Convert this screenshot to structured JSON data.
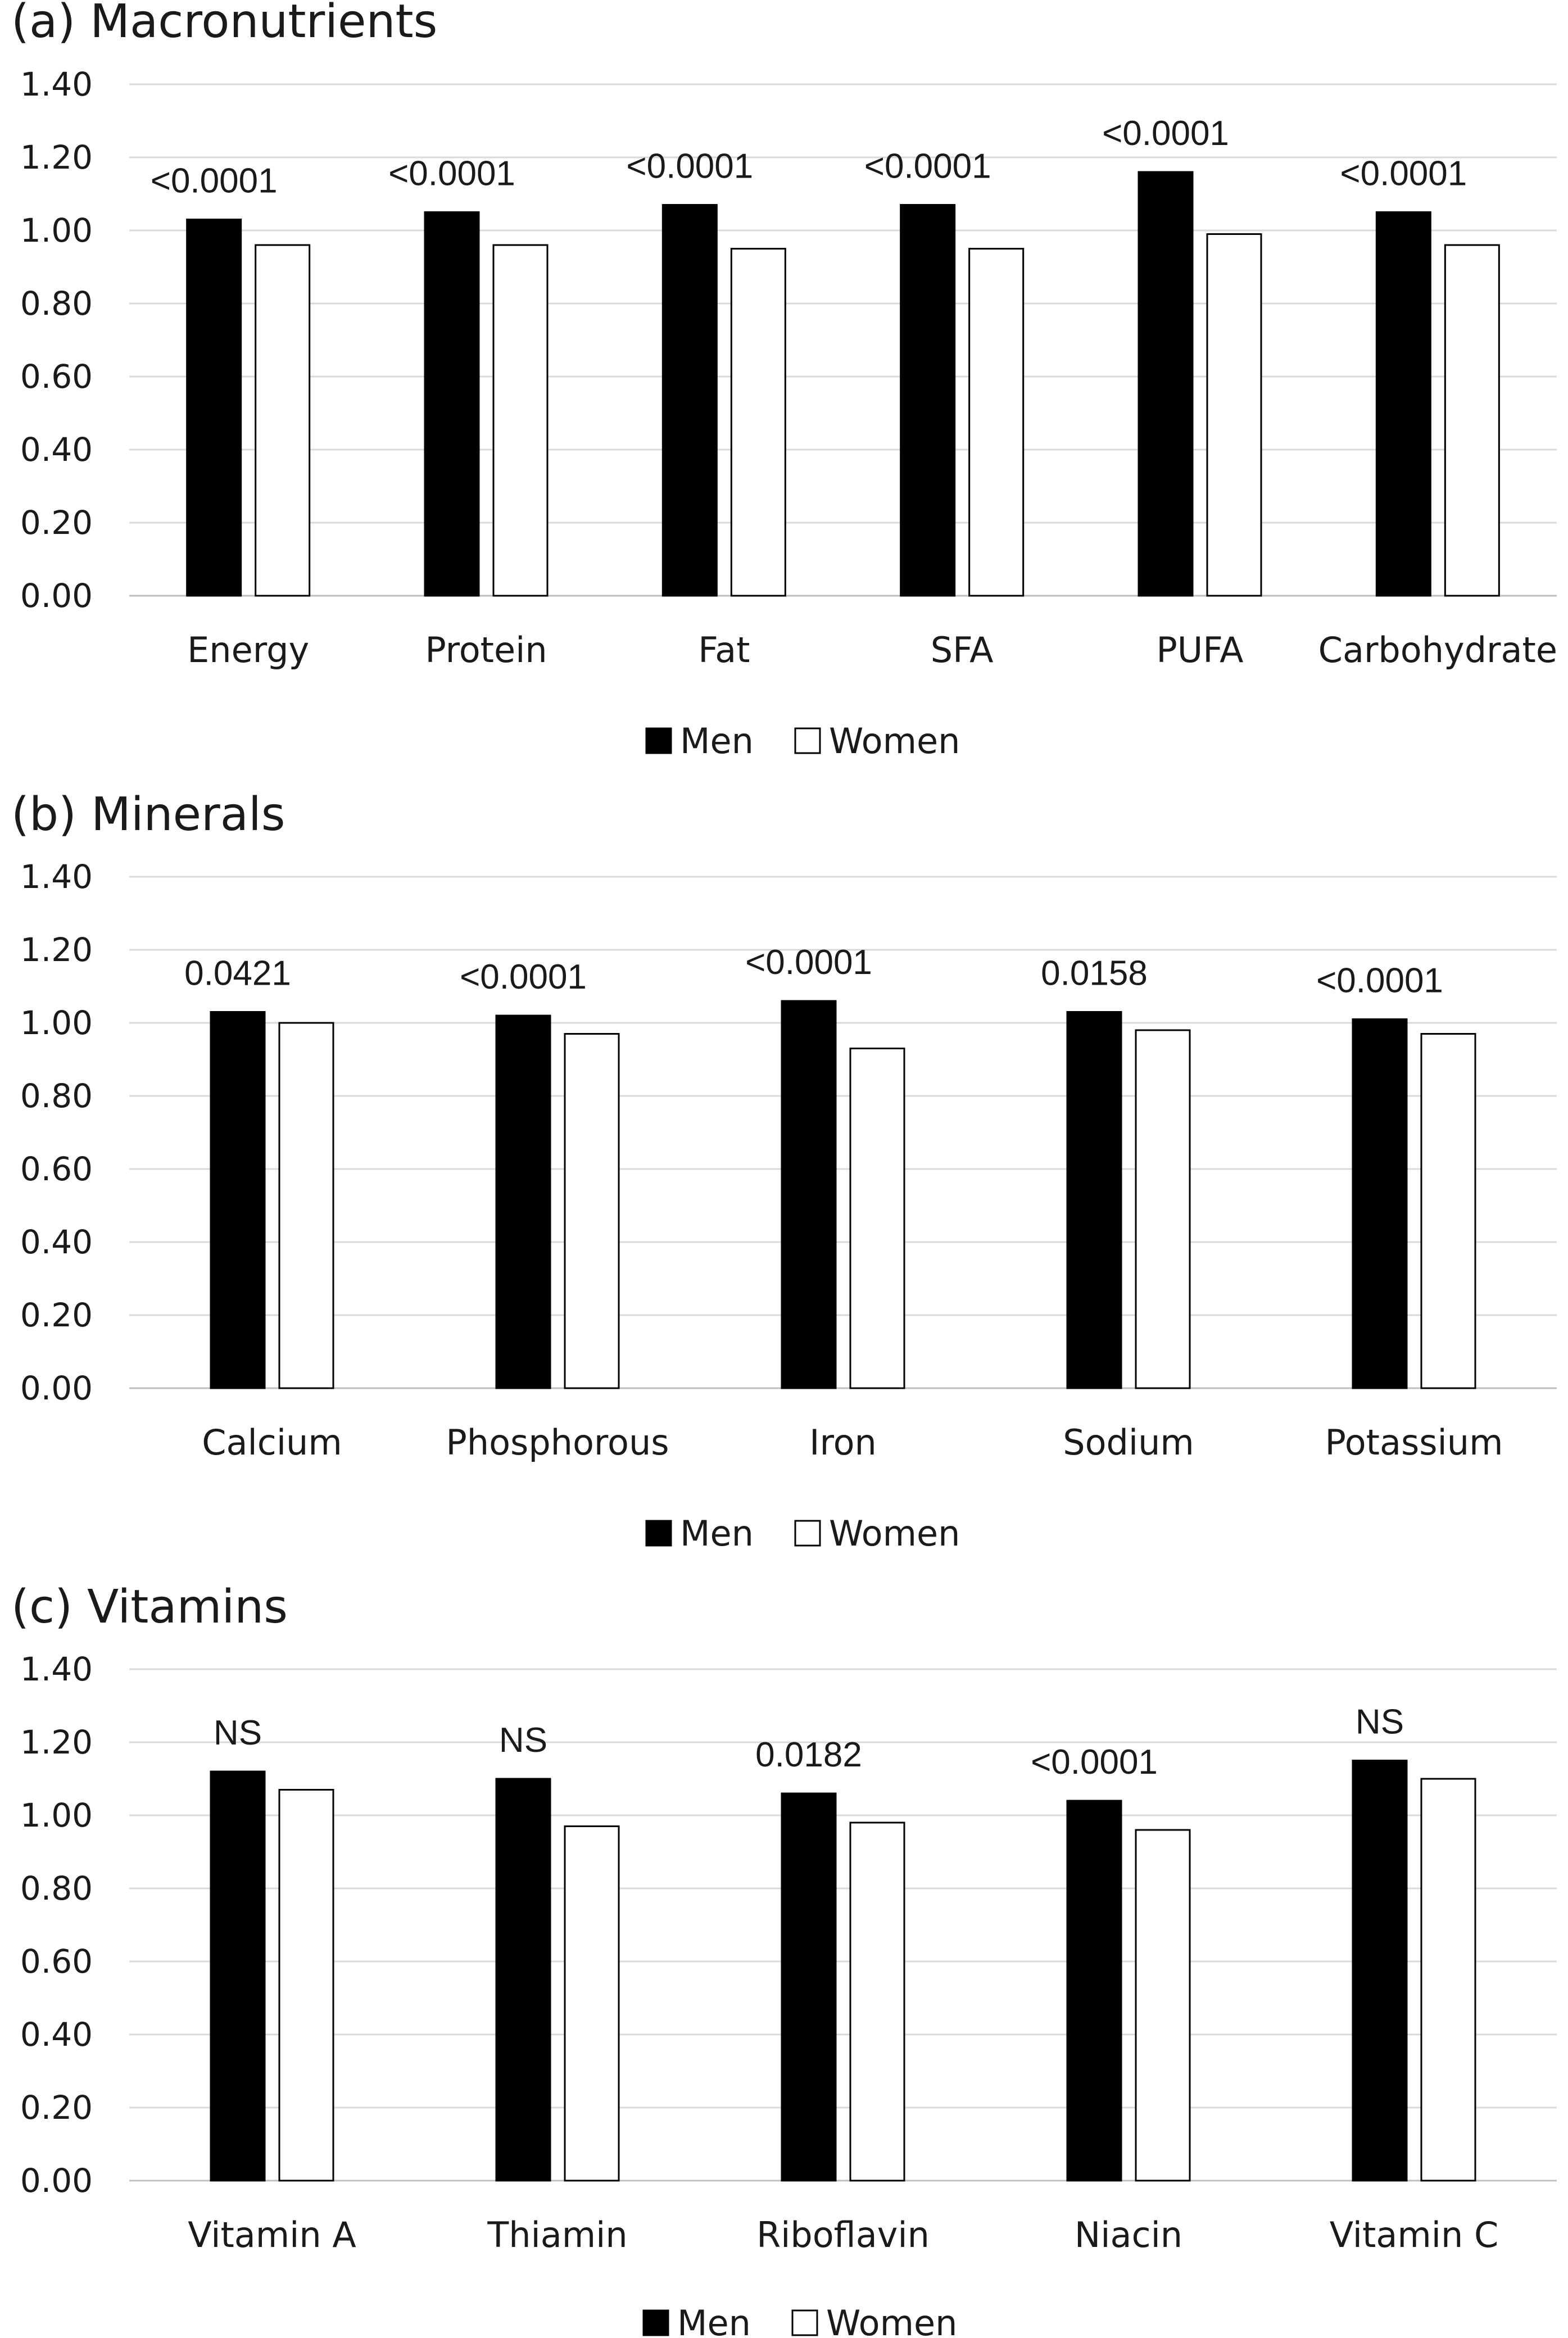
{
  "chart_data": [
    {
      "type": "bar",
      "title": "(a)  Macronutrients",
      "categories": [
        "Energy",
        "Protein",
        "Fat",
        "SFA",
        "PUFA",
        "Carbohydrate"
      ],
      "series": [
        {
          "name": "Men",
          "color": "#000000",
          "values": [
            1.03,
            1.05,
            1.07,
            1.07,
            1.16,
            1.05
          ]
        },
        {
          "name": "Women",
          "color": "#ffffff",
          "values": [
            0.96,
            0.96,
            0.95,
            0.95,
            0.99,
            0.96
          ]
        }
      ],
      "annotations": [
        "<0.0001",
        "<0.0001",
        "<0.0001",
        "<0.0001",
        "<0.0001",
        "<0.0001"
      ],
      "yticks": [
        "0.00",
        "0.20",
        "0.40",
        "0.60",
        "0.80",
        "1.00",
        "1.20",
        "1.40"
      ],
      "ylim": [
        0,
        1.4
      ],
      "grid": true,
      "legend": "bottom-center",
      "xlabel": "",
      "ylabel": ""
    },
    {
      "type": "bar",
      "title": "(b)  Minerals",
      "categories": [
        "Calcium",
        "Phosphorous",
        "Iron",
        "Sodium",
        "Potassium"
      ],
      "series": [
        {
          "name": "Men",
          "color": "#000000",
          "values": [
            1.03,
            1.02,
            1.06,
            1.03,
            1.01
          ]
        },
        {
          "name": "Women",
          "color": "#ffffff",
          "values": [
            1.0,
            0.97,
            0.93,
            0.98,
            0.97
          ]
        }
      ],
      "annotations": [
        "0.0421",
        "<0.0001",
        "<0.0001",
        "0.0158",
        "<0.0001"
      ],
      "yticks": [
        "0.00",
        "0.20",
        "0.40",
        "0.60",
        "0.80",
        "1.00",
        "1.20",
        "1.40"
      ],
      "ylim": [
        0,
        1.4
      ],
      "grid": true,
      "legend": "bottom-center",
      "xlabel": "",
      "ylabel": ""
    },
    {
      "type": "bar",
      "title": "(c)  Vitamins",
      "categories": [
        "Vitamin A",
        "Thiamin",
        "Riboflavin",
        "Niacin",
        "Vitamin C"
      ],
      "series": [
        {
          "name": "Men",
          "color": "#000000",
          "values": [
            1.12,
            1.1,
            1.06,
            1.04,
            1.15
          ]
        },
        {
          "name": "Women",
          "color": "#ffffff",
          "values": [
            1.07,
            0.97,
            0.98,
            0.96,
            1.1
          ]
        }
      ],
      "annotations": [
        "NS",
        "NS",
        "0.0182",
        "<0.0001",
        "NS"
      ],
      "yticks": [
        "0.00",
        "0.20",
        "0.40",
        "0.60",
        "0.80",
        "1.00",
        "1.20",
        "1.40"
      ],
      "ylim": [
        0,
        1.4
      ],
      "grid": true,
      "legend": "bottom-center",
      "xlabel": "",
      "ylabel": ""
    }
  ]
}
